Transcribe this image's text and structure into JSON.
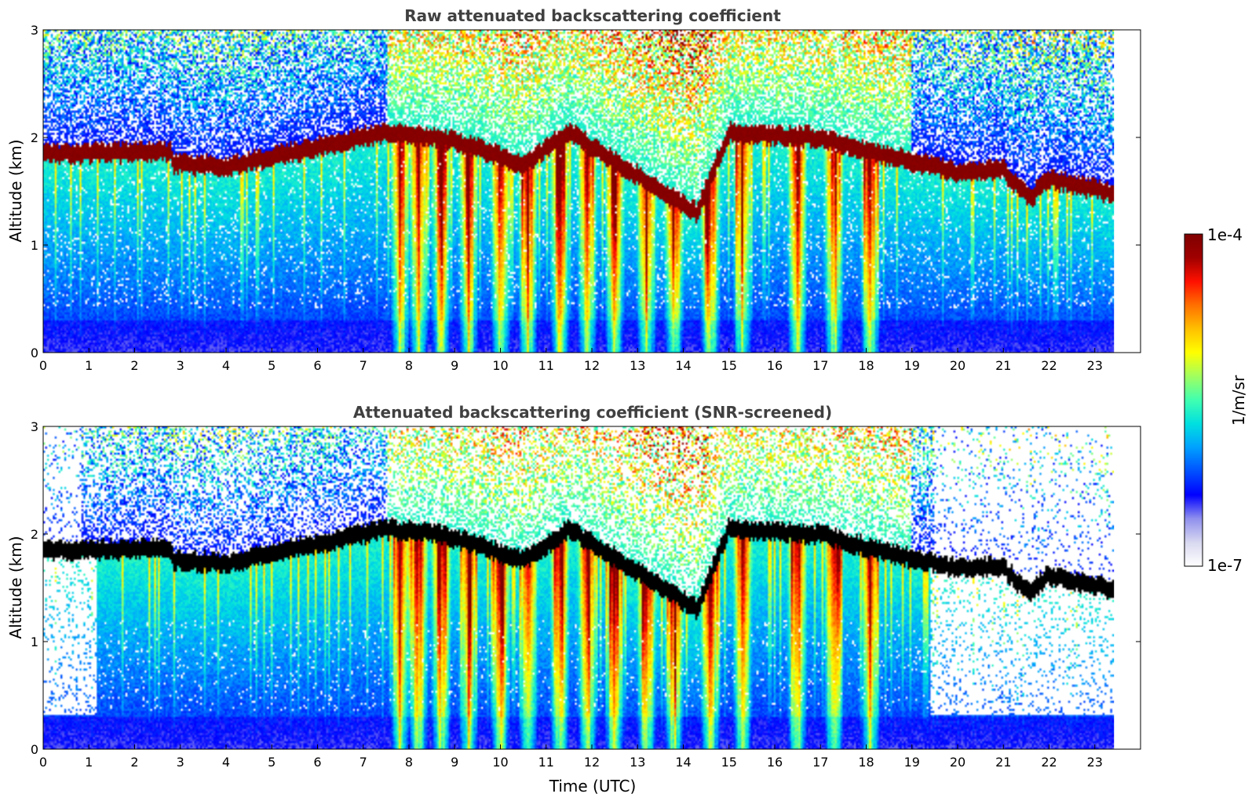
{
  "colorscale": [
    "#ffffff",
    "#d8d8f0",
    "#9090ee",
    "#0000ff",
    "#0050ff",
    "#00a0ff",
    "#00e0e0",
    "#40ffb0",
    "#a0ff60",
    "#ffff00",
    "#ffc000",
    "#ff7000",
    "#ff1000",
    "#a00000",
    "#800000"
  ],
  "chart_data": [
    {
      "type": "heatmap",
      "title": "Raw attenuated backscattering coefficient",
      "xlabel": "",
      "ylabel": "Altitude (km)",
      "xlim": [
        0,
        24
      ],
      "ylim": [
        0,
        3
      ],
      "x_ticks": [
        "0",
        "1",
        "2",
        "3",
        "4",
        "5",
        "6",
        "7",
        "8",
        "9",
        "10",
        "11",
        "12",
        "13",
        "14",
        "15",
        "16",
        "17",
        "18",
        "19",
        "20",
        "21",
        "22",
        "23"
      ],
      "y_ticks": [
        "0",
        "1",
        "2",
        "3"
      ],
      "data_x_end": 23.42,
      "layer_top_km": {
        "x": [
          0,
          2.8,
          2.81,
          4.0,
          7.5,
          8.7,
          9.5,
          10.5,
          11.5,
          14.3,
          15,
          17,
          18,
          19,
          20,
          21,
          21.6,
          22,
          23.42
        ],
        "y": [
          1.85,
          1.87,
          1.76,
          1.73,
          2.05,
          2.0,
          1.9,
          1.75,
          2.05,
          1.3,
          2.05,
          2.0,
          1.88,
          1.78,
          1.68,
          1.7,
          1.43,
          1.62,
          1.48
        ]
      },
      "colorbar": {
        "label": "1/m/sr",
        "min_label": "1e-7",
        "max_label": "1e-4",
        "scale": "log"
      }
    },
    {
      "type": "heatmap",
      "title": "Attenuated backscattering coefficient (SNR-screened)",
      "xlabel": "Time (UTC)",
      "ylabel": "Altitude (km)",
      "xlim": [
        0,
        24
      ],
      "ylim": [
        0,
        3
      ],
      "x_ticks": [
        "0",
        "1",
        "2",
        "3",
        "4",
        "5",
        "6",
        "7",
        "8",
        "9",
        "10",
        "11",
        "12",
        "13",
        "14",
        "15",
        "16",
        "17",
        "18",
        "19",
        "20",
        "21",
        "22",
        "23"
      ],
      "y_ticks": [
        "0",
        "1",
        "2",
        "3"
      ],
      "data_x_end": 23.42,
      "saturated_color": "#000000",
      "colorbar": {
        "label": "1/m/sr",
        "min_label": "1e-7",
        "max_label": "1e-4",
        "scale": "log"
      }
    }
  ]
}
